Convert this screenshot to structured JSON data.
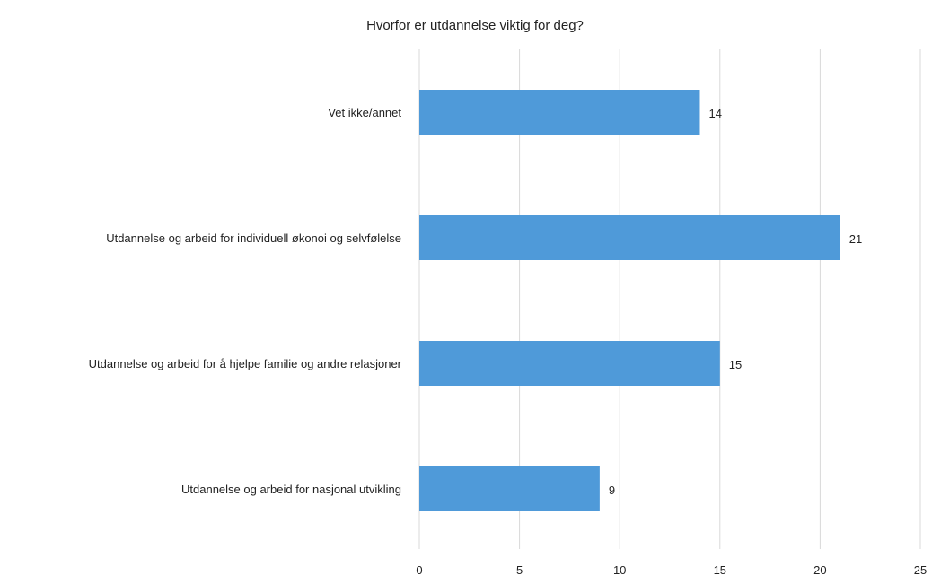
{
  "chart_data": {
    "type": "bar",
    "orientation": "horizontal",
    "title": "Hvorfor er utdannelse viktig for deg?",
    "xlabel": "",
    "ylabel": "",
    "categories": [
      "Vet ikke/annet",
      "Utdannelse og arbeid for individuell økonoi og selvfølelse",
      "Utdannelse og arbeid for å hjelpe familie og andre relasjoner",
      "Utdannelse og arbeid for nasjonal utvikling"
    ],
    "values": [
      14,
      21,
      15,
      9
    ],
    "data_labels": [
      "14",
      "21",
      "15",
      "9"
    ],
    "xlim": [
      0,
      25
    ],
    "xticks": [
      "0",
      "5",
      "10",
      "15",
      "20",
      "25"
    ],
    "grid": "vertical",
    "legend": "none",
    "bar_color": "#4f9ad9"
  }
}
